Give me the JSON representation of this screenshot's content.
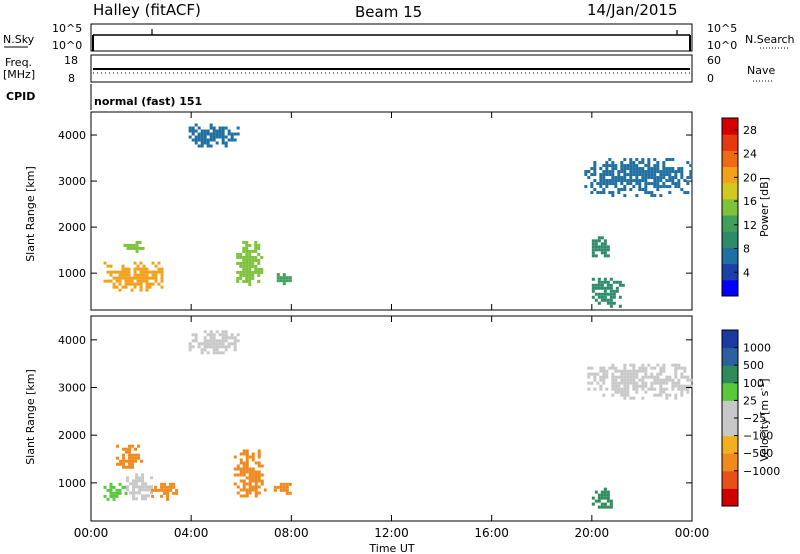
{
  "header": {
    "station": "Halley (fitACF)",
    "beam": "Beam 15",
    "date": "14/Jan/2015"
  },
  "strip_labels": {
    "nsky": "N.Sky",
    "nsearch": "N.Search",
    "freq_line1": "Freq.",
    "freq_line2": "[MHz]",
    "nave": "Nave",
    "cpid": "CPID",
    "cpid_value": "normal (fast) 151",
    "nsky_top": "10^5",
    "nsky_bottom": "10^0",
    "nsearch_top": "10^5",
    "nsearch_bottom": "10^0",
    "freq_top": "18",
    "freq_bottom": "8",
    "nave_top": "60",
    "nave_bottom": "0"
  },
  "colors": {
    "power_scale": [
      "#0000ff",
      "#1e3fa5",
      "#1f6fa0",
      "#2f8a6b",
      "#3ea05a",
      "#7cc23a",
      "#d2c81e",
      "#f2a11c",
      "#ee6a14",
      "#e43a12",
      "#d60000"
    ],
    "velocity_scale": [
      "#d00000",
      "#e8501a",
      "#f08a1e",
      "#f2b020",
      "#c8c8c8",
      "#c8c8c8",
      "#5ac83c",
      "#2f8a5a",
      "#2a5fa0",
      "#1a3aa0"
    ]
  },
  "chart_data": [
    {
      "type": "heatmap",
      "panel": "power",
      "xlabel": "",
      "ylabel": "Slant Range [km]",
      "xlim": [
        "00:00",
        "24:00"
      ],
      "ylim": [
        200,
        4500
      ],
      "yticks": [
        1000,
        2000,
        3000,
        4000
      ],
      "xticks": [
        "00:00",
        "04:00",
        "08:00",
        "12:00",
        "16:00",
        "20:00",
        "00:00"
      ],
      "colorbar": {
        "label": "Power [dB]",
        "ticks": [
          "4",
          "8",
          "12",
          "16",
          "20",
          "24",
          "28"
        ],
        "range": [
          0,
          30
        ]
      },
      "echo_regions": [
        {
          "time_start": 0.5,
          "time_end": 2.9,
          "range_start": 650,
          "range_end": 1250,
          "value": 20
        },
        {
          "time_start": 1.3,
          "time_end": 2.1,
          "range_start": 1450,
          "range_end": 1700,
          "value": 14
        },
        {
          "time_start": 3.9,
          "time_end": 5.9,
          "range_start": 3750,
          "range_end": 4250,
          "value": 6
        },
        {
          "time_start": 5.8,
          "time_end": 6.8,
          "range_start": 750,
          "range_end": 1700,
          "value": 14
        },
        {
          "time_start": 7.3,
          "time_end": 8.0,
          "range_start": 750,
          "range_end": 1000,
          "value": 12
        },
        {
          "time_start": 19.7,
          "time_end": 23.9,
          "range_start": 2700,
          "range_end": 3500,
          "value": 6
        },
        {
          "time_start": 20.0,
          "time_end": 21.3,
          "range_start": 250,
          "range_end": 900,
          "value": 10
        },
        {
          "time_start": 20.0,
          "time_end": 20.8,
          "range_start": 1300,
          "range_end": 1800,
          "value": 10
        }
      ]
    },
    {
      "type": "heatmap",
      "panel": "velocity",
      "xlabel": "Time UT",
      "ylabel": "Slant Range [km]",
      "xlim": [
        "00:00",
        "24:00"
      ],
      "ylim": [
        200,
        4500
      ],
      "yticks": [
        1000,
        2000,
        3000,
        4000
      ],
      "xticks": [
        "00:00",
        "04:00",
        "08:00",
        "12:00",
        "16:00",
        "20:00",
        "00:00"
      ],
      "colorbar": {
        "label": "Velocity [m s^-1]",
        "ticks": [
          "1000",
          "500",
          "100",
          "25",
          "-25",
          "-100",
          "-500",
          "-1000"
        ]
      },
      "echo_regions": [
        {
          "time_start": 0.5,
          "time_end": 1.4,
          "range_start": 650,
          "range_end": 1000,
          "value": 80
        },
        {
          "time_start": 1.4,
          "time_end": 2.4,
          "range_start": 650,
          "range_end": 1200,
          "value": 0
        },
        {
          "time_start": 2.4,
          "time_end": 3.4,
          "range_start": 650,
          "range_end": 1000,
          "value": -150
        },
        {
          "time_start": 1.0,
          "time_end": 2.0,
          "range_start": 1300,
          "range_end": 1800,
          "value": -300
        },
        {
          "time_start": 3.9,
          "time_end": 5.9,
          "range_start": 3700,
          "range_end": 4200,
          "value": 0
        },
        {
          "time_start": 5.7,
          "time_end": 6.9,
          "range_start": 700,
          "range_end": 1700,
          "value": -300
        },
        {
          "time_start": 7.3,
          "time_end": 8.0,
          "range_start": 750,
          "range_end": 1000,
          "value": -150
        },
        {
          "time_start": 19.7,
          "time_end": 23.9,
          "range_start": 2800,
          "range_end": 3500,
          "value": 0
        },
        {
          "time_start": 20.0,
          "time_end": 20.8,
          "range_start": 400,
          "range_end": 900,
          "value": 200
        }
      ]
    }
  ]
}
